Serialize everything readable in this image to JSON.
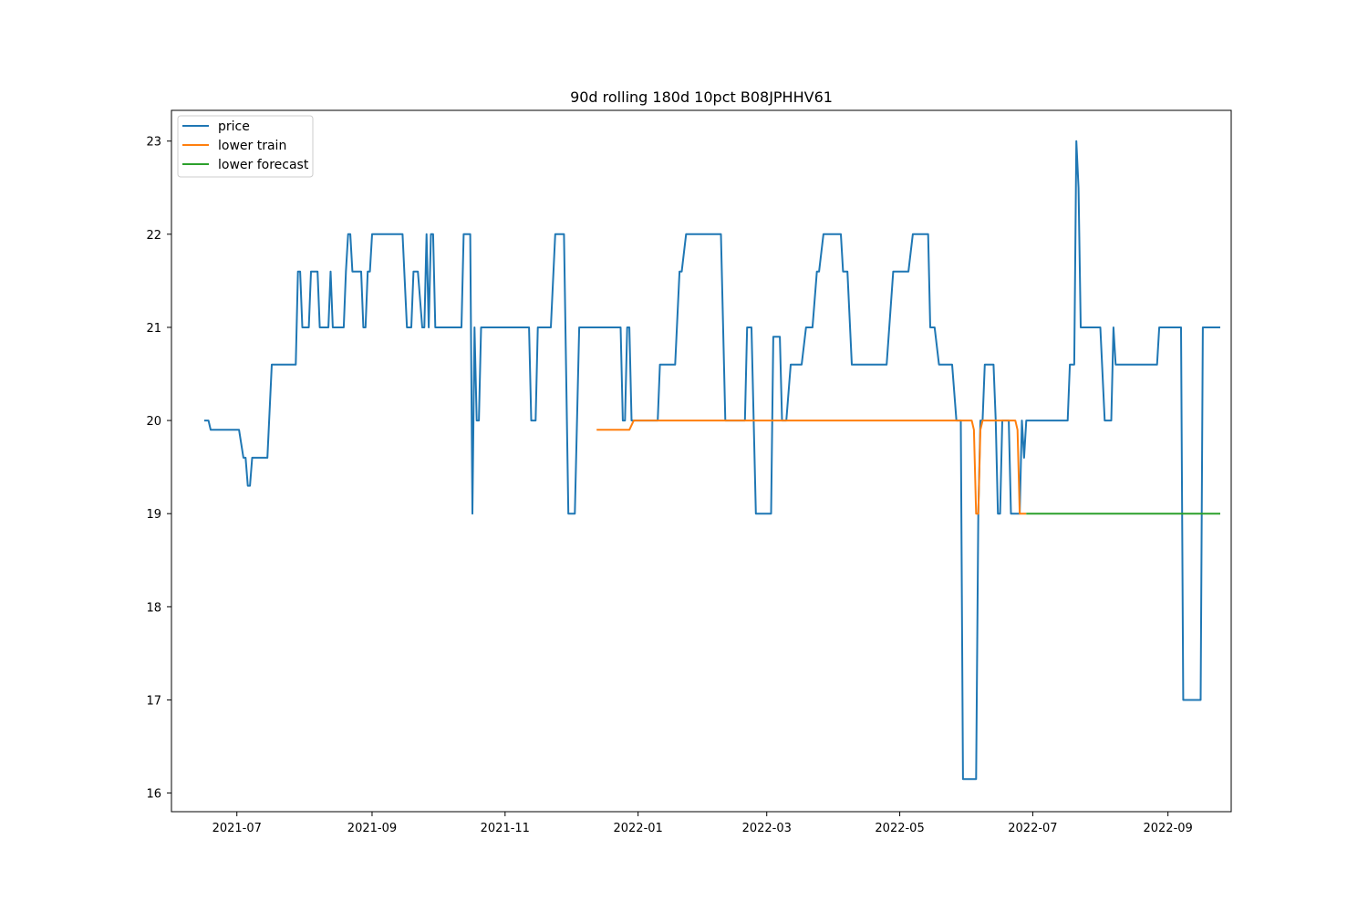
{
  "chart_data": {
    "type": "line",
    "title": "90d rolling 180d 10pct B08JPHHV61",
    "xlabel": "",
    "ylabel": "",
    "x_range": [
      "2021-06-01",
      "2022-09-30"
    ],
    "ylim": [
      15.8,
      23.33
    ],
    "x_ticks": [
      "2021-07",
      "2021-09",
      "2021-11",
      "2022-01",
      "2022-03",
      "2022-05",
      "2022-07",
      "2022-09"
    ],
    "y_ticks": [
      16,
      17,
      18,
      19,
      20,
      21,
      22,
      23
    ],
    "grid": false,
    "legend": {
      "position": "top-left",
      "entries": [
        "price",
        "lower train",
        "lower forecast"
      ]
    },
    "series": [
      {
        "name": "price",
        "color": "#1f77b4",
        "points": [
          [
            "2021-06-16",
            20.0
          ],
          [
            "2021-06-18",
            20.0
          ],
          [
            "2021-06-19",
            19.9
          ],
          [
            "2021-07-02",
            19.9
          ],
          [
            "2021-07-04",
            19.6
          ],
          [
            "2021-07-05",
            19.6
          ],
          [
            "2021-07-06",
            19.3
          ],
          [
            "2021-07-07",
            19.3
          ],
          [
            "2021-07-08",
            19.6
          ],
          [
            "2021-07-15",
            19.6
          ],
          [
            "2021-07-17",
            20.6
          ],
          [
            "2021-07-28",
            20.6
          ],
          [
            "2021-07-29",
            21.6
          ],
          [
            "2021-07-30",
            21.6
          ],
          [
            "2021-07-31",
            21.0
          ],
          [
            "2021-08-03",
            21.0
          ],
          [
            "2021-08-04",
            21.6
          ],
          [
            "2021-08-07",
            21.6
          ],
          [
            "2021-08-08",
            21.0
          ],
          [
            "2021-08-12",
            21.0
          ],
          [
            "2021-08-13",
            21.6
          ],
          [
            "2021-08-14",
            21.0
          ],
          [
            "2021-08-19",
            21.0
          ],
          [
            "2021-08-20",
            21.6
          ],
          [
            "2021-08-21",
            22.0
          ],
          [
            "2021-08-22",
            22.0
          ],
          [
            "2021-08-23",
            21.6
          ],
          [
            "2021-08-27",
            21.6
          ],
          [
            "2021-08-28",
            21.0
          ],
          [
            "2021-08-29",
            21.0
          ],
          [
            "2021-08-30",
            21.6
          ],
          [
            "2021-08-31",
            21.6
          ],
          [
            "2021-09-01",
            22.0
          ],
          [
            "2021-09-15",
            22.0
          ],
          [
            "2021-09-17",
            21.0
          ],
          [
            "2021-09-19",
            21.0
          ],
          [
            "2021-09-20",
            21.6
          ],
          [
            "2021-09-22",
            21.6
          ],
          [
            "2021-09-24",
            21.0
          ],
          [
            "2021-09-25",
            21.0
          ],
          [
            "2021-09-26",
            22.0
          ],
          [
            "2021-09-27",
            21.0
          ],
          [
            "2021-09-28",
            22.0
          ],
          [
            "2021-09-29",
            22.0
          ],
          [
            "2021-09-30",
            21.0
          ],
          [
            "2021-10-12",
            21.0
          ],
          [
            "2021-10-13",
            22.0
          ],
          [
            "2021-10-16",
            22.0
          ],
          [
            "2021-10-17",
            19.0
          ],
          [
            "2021-10-18",
            21.0
          ],
          [
            "2021-10-19",
            20.0
          ],
          [
            "2021-10-20",
            20.0
          ],
          [
            "2021-10-21",
            21.0
          ],
          [
            "2021-11-12",
            21.0
          ],
          [
            "2021-11-13",
            20.0
          ],
          [
            "2021-11-15",
            20.0
          ],
          [
            "2021-11-16",
            21.0
          ],
          [
            "2021-11-22",
            21.0
          ],
          [
            "2021-11-24",
            22.0
          ],
          [
            "2021-11-28",
            22.0
          ],
          [
            "2021-11-30",
            19.0
          ],
          [
            "2021-12-03",
            19.0
          ],
          [
            "2021-12-05",
            21.0
          ],
          [
            "2021-12-24",
            21.0
          ],
          [
            "2021-12-25",
            20.0
          ],
          [
            "2021-12-26",
            20.0
          ],
          [
            "2021-12-27",
            21.0
          ],
          [
            "2021-12-28",
            21.0
          ],
          [
            "2021-12-29",
            20.0
          ],
          [
            "2022-01-10",
            20.0
          ],
          [
            "2022-01-11",
            20.6
          ],
          [
            "2022-01-18",
            20.6
          ],
          [
            "2022-01-20",
            21.6
          ],
          [
            "2022-01-21",
            21.6
          ],
          [
            "2022-01-23",
            22.0
          ],
          [
            "2022-02-08",
            22.0
          ],
          [
            "2022-02-10",
            20.0
          ],
          [
            "2022-02-19",
            20.0
          ],
          [
            "2022-02-20",
            21.0
          ],
          [
            "2022-02-22",
            21.0
          ],
          [
            "2022-02-24",
            19.0
          ],
          [
            "2022-03-03",
            19.0
          ],
          [
            "2022-03-04",
            20.9
          ],
          [
            "2022-03-07",
            20.9
          ],
          [
            "2022-03-08",
            20.0
          ],
          [
            "2022-03-10",
            20.0
          ],
          [
            "2022-03-12",
            20.6
          ],
          [
            "2022-03-17",
            20.6
          ],
          [
            "2022-03-19",
            21.0
          ],
          [
            "2022-03-22",
            21.0
          ],
          [
            "2022-03-24",
            21.6
          ],
          [
            "2022-03-25",
            21.6
          ],
          [
            "2022-03-27",
            22.0
          ],
          [
            "2022-04-04",
            22.0
          ],
          [
            "2022-04-05",
            21.6
          ],
          [
            "2022-04-07",
            21.6
          ],
          [
            "2022-04-09",
            20.6
          ],
          [
            "2022-04-25",
            20.6
          ],
          [
            "2022-04-28",
            21.6
          ],
          [
            "2022-05-05",
            21.6
          ],
          [
            "2022-05-07",
            22.0
          ],
          [
            "2022-05-14",
            22.0
          ],
          [
            "2022-05-15",
            21.0
          ],
          [
            "2022-05-17",
            21.0
          ],
          [
            "2022-05-19",
            20.6
          ],
          [
            "2022-05-25",
            20.6
          ],
          [
            "2022-05-27",
            20.0
          ],
          [
            "2022-05-29",
            20.0
          ],
          [
            "2022-05-30",
            16.15
          ],
          [
            "2022-06-05",
            16.15
          ],
          [
            "2022-06-06",
            19.0
          ],
          [
            "2022-06-07",
            20.0
          ],
          [
            "2022-06-08",
            20.0
          ],
          [
            "2022-06-09",
            20.6
          ],
          [
            "2022-06-13",
            20.6
          ],
          [
            "2022-06-14",
            20.0
          ],
          [
            "2022-06-15",
            19.0
          ],
          [
            "2022-06-16",
            19.0
          ],
          [
            "2022-06-17",
            20.0
          ],
          [
            "2022-06-20",
            20.0
          ],
          [
            "2022-06-21",
            19.0
          ],
          [
            "2022-06-25",
            19.0
          ],
          [
            "2022-06-26",
            20.0
          ],
          [
            "2022-06-27",
            19.6
          ],
          [
            "2022-06-28",
            20.0
          ],
          [
            "2022-07-17",
            20.0
          ],
          [
            "2022-07-18",
            20.6
          ],
          [
            "2022-07-20",
            20.6
          ],
          [
            "2022-07-21",
            23.0
          ],
          [
            "2022-07-22",
            22.5
          ],
          [
            "2022-07-23",
            21.0
          ],
          [
            "2022-08-01",
            21.0
          ],
          [
            "2022-08-03",
            20.0
          ],
          [
            "2022-08-06",
            20.0
          ],
          [
            "2022-08-07",
            21.0
          ],
          [
            "2022-08-08",
            20.6
          ],
          [
            "2022-08-27",
            20.6
          ],
          [
            "2022-08-28",
            21.0
          ],
          [
            "2022-09-07",
            21.0
          ],
          [
            "2022-09-08",
            17.0
          ],
          [
            "2022-09-16",
            17.0
          ],
          [
            "2022-09-17",
            21.0
          ],
          [
            "2022-09-25",
            21.0
          ]
        ]
      },
      {
        "name": "lower train",
        "color": "#ff7f0e",
        "points": [
          [
            "2021-12-13",
            19.9
          ],
          [
            "2021-12-28",
            19.9
          ],
          [
            "2021-12-30",
            20.0
          ],
          [
            "2022-06-03",
            20.0
          ],
          [
            "2022-06-04",
            19.9
          ],
          [
            "2022-06-05",
            19.0
          ],
          [
            "2022-06-06",
            19.0
          ],
          [
            "2022-06-07",
            19.9
          ],
          [
            "2022-06-08",
            20.0
          ],
          [
            "2022-06-23",
            20.0
          ],
          [
            "2022-06-24",
            19.9
          ],
          [
            "2022-06-25",
            19.0
          ],
          [
            "2022-06-28",
            19.0
          ]
        ]
      },
      {
        "name": "lower forecast",
        "color": "#2ca02c",
        "points": [
          [
            "2022-06-28",
            19.0
          ],
          [
            "2022-09-25",
            19.0
          ]
        ]
      }
    ]
  }
}
